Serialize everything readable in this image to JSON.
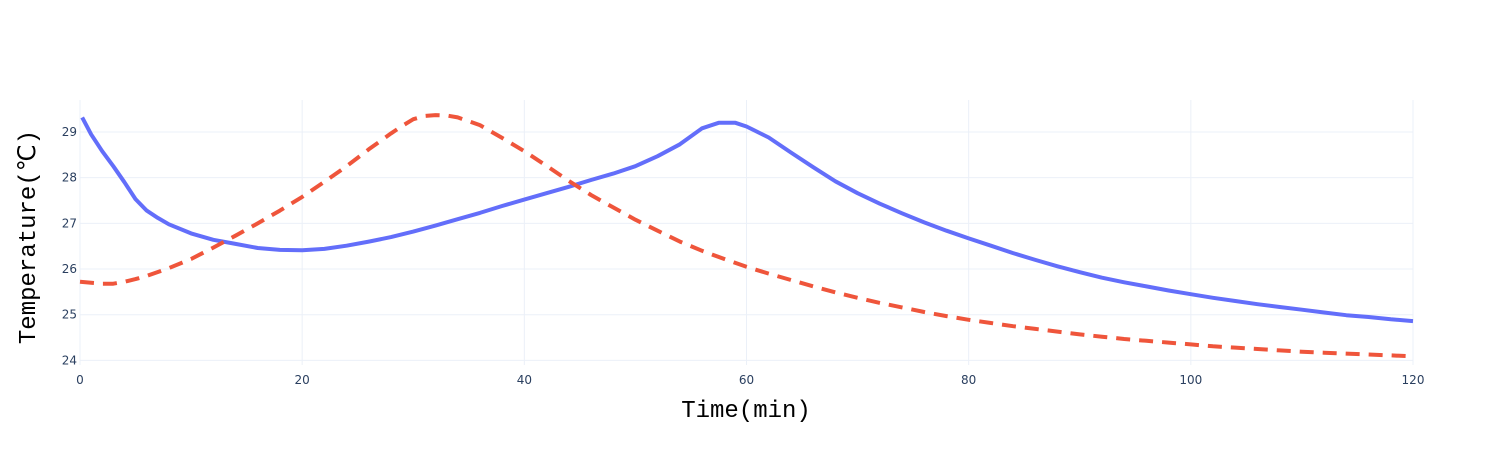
{
  "chart_data": {
    "type": "line",
    "title": "",
    "xlabel": "Time(min)",
    "ylabel": "Temperature(℃)",
    "xlim": [
      0,
      120
    ],
    "ylim": [
      23.9,
      29.7
    ],
    "xticks": [
      0,
      20,
      40,
      60,
      80,
      100,
      120
    ],
    "yticks": [
      24,
      25,
      26,
      27,
      28,
      29
    ],
    "grid": true,
    "legend": "none",
    "series": [
      {
        "color": "#636efa",
        "dash": "solid",
        "x": [
          0.2,
          1,
          2,
          3,
          4,
          5,
          6,
          7,
          8,
          10,
          12,
          14,
          16,
          18,
          20,
          22,
          24,
          26,
          28,
          30,
          32,
          34,
          36,
          38,
          40,
          42,
          44,
          46,
          48,
          50,
          52,
          54,
          56,
          57.5,
          59,
          60,
          62,
          64,
          66,
          68,
          70,
          72,
          74,
          76,
          78,
          80,
          82,
          84,
          86,
          88,
          90,
          92,
          94,
          96,
          98,
          100,
          102,
          104,
          106,
          108,
          110,
          112,
          114,
          116,
          118,
          120
        ],
        "y": [
          29.32,
          28.95,
          28.58,
          28.25,
          27.9,
          27.53,
          27.28,
          27.12,
          26.98,
          26.78,
          26.64,
          26.55,
          26.46,
          26.42,
          26.41,
          26.44,
          26.51,
          26.6,
          26.7,
          26.82,
          26.95,
          27.09,
          27.23,
          27.38,
          27.52,
          27.66,
          27.8,
          27.95,
          28.09,
          28.25,
          28.47,
          28.73,
          29.08,
          29.2,
          29.2,
          29.12,
          28.88,
          28.55,
          28.23,
          27.92,
          27.66,
          27.43,
          27.22,
          27.02,
          26.84,
          26.67,
          26.51,
          26.35,
          26.2,
          26.06,
          25.93,
          25.81,
          25.71,
          25.62,
          25.53,
          25.45,
          25.37,
          25.3,
          25.23,
          25.17,
          25.11,
          25.05,
          24.99,
          24.95,
          24.9,
          24.86
        ]
      },
      {
        "color": "#ef553b",
        "dash": "dash",
        "x": [
          0,
          1,
          2,
          3,
          4,
          5,
          6,
          8,
          10,
          12,
          14,
          16,
          18,
          20,
          22,
          24,
          26,
          28,
          29,
          30,
          31,
          32,
          33,
          34,
          36,
          38,
          40,
          42,
          44,
          46,
          48,
          50,
          52,
          54,
          56,
          58,
          60,
          62,
          64,
          66,
          68,
          70,
          72,
          74,
          76,
          78,
          80,
          82,
          84,
          86,
          88,
          90,
          92,
          94,
          96,
          98,
          100,
          102,
          104,
          106,
          108,
          110,
          112,
          114,
          116,
          118,
          120
        ],
        "y": [
          25.72,
          25.7,
          25.68,
          25.68,
          25.72,
          25.78,
          25.85,
          26.02,
          26.22,
          26.47,
          26.73,
          27.0,
          27.28,
          27.58,
          27.91,
          28.25,
          28.62,
          28.97,
          29.13,
          29.28,
          29.35,
          29.37,
          29.36,
          29.32,
          29.15,
          28.87,
          28.58,
          28.26,
          27.93,
          27.62,
          27.35,
          27.08,
          26.84,
          26.6,
          26.4,
          26.22,
          26.05,
          25.9,
          25.76,
          25.62,
          25.49,
          25.37,
          25.26,
          25.16,
          25.06,
          24.97,
          24.89,
          24.82,
          24.75,
          24.69,
          24.63,
          24.57,
          24.52,
          24.47,
          24.43,
          24.39,
          24.35,
          24.31,
          24.28,
          24.25,
          24.22,
          24.19,
          24.17,
          24.15,
          24.13,
          24.11,
          24.09
        ]
      }
    ]
  }
}
